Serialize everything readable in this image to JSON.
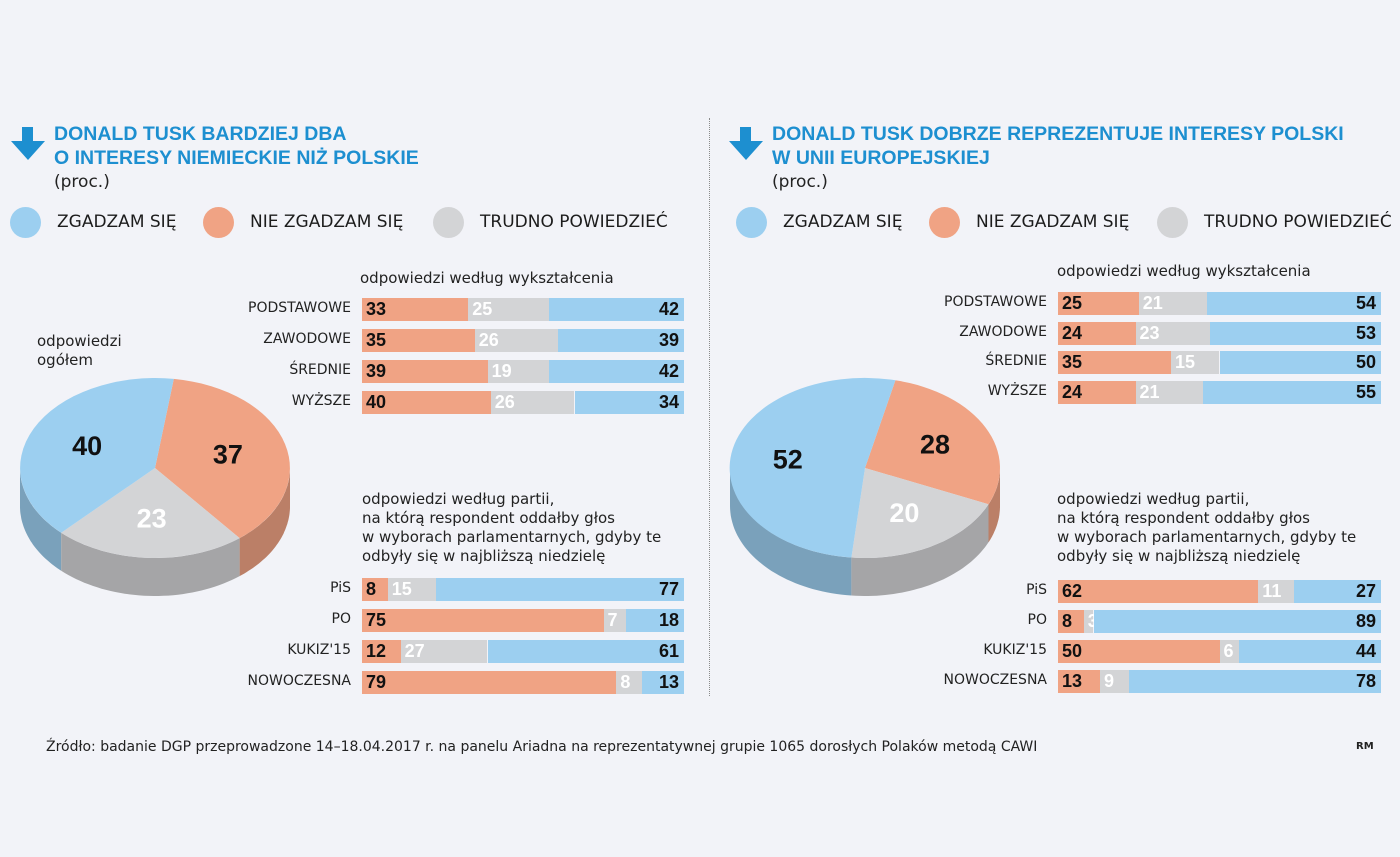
{
  "colors": {
    "agree": "#9ccff0",
    "disagree": "#f0a384",
    "hard": "#d3d4d6",
    "title": "#1d8fd0"
  },
  "legend": {
    "agree": "ZGADZAM SIĘ",
    "disagree": "NIE ZGADZAM SIĘ",
    "hard": "TRUDNO POWIEDZIEĆ"
  },
  "left": {
    "title_line1": "DONALD TUSK BARDZIEJ DBA",
    "title_line2": "O INTERESY NIEMIECKIE NIŻ POLSKIE",
    "unit": "(proc.)",
    "pie_label_line1": "odpowiedzi",
    "pie_label_line2": "ogółem",
    "education_label": "odpowiedzi według wykształcenia",
    "party_label": [
      "odpowiedzi według partii,",
      "na którą respondent oddałby głos",
      "w wyborach parlamentarnych, gdyby te",
      "odbyły się w najbliższą niedzielę"
    ]
  },
  "right": {
    "title_line1": "DONALD TUSK DOBRZE REPREZENTUJE INTERESY POLSKI",
    "title_line2": "W UNII EUROPEJSKIEJ",
    "unit": "(proc.)",
    "education_label": "odpowiedzi według wykształcenia",
    "party_label": [
      "odpowiedzi według partii,",
      "na którą respondent oddałby głos",
      "w wyborach parlamentarnych, gdyby te",
      "odbyły się w najbliższą niedzielę"
    ]
  },
  "footer": "Źródło: badanie DGP przeprowadzone 14–18.04.2017 r. na panelu Ariadna na reprezentatywnej grupie 1065 dorosłych Polaków metodą CAWI",
  "credit": "RM",
  "chart_data": [
    {
      "type": "pie",
      "title": "DONALD TUSK BARDZIEJ DBA O INTERESY NIEMIECKIE NIŻ POLSKIE",
      "subtitle": "odpowiedzi ogółem",
      "categories": [
        "ZGADZAM SIĘ",
        "NIE ZGADZAM SIĘ",
        "TRUDNO POWIEDZIEĆ"
      ],
      "values": [
        40,
        37,
        23
      ]
    },
    {
      "type": "bar",
      "orientation": "horizontal-stacked",
      "title": "odpowiedzi według wykształcenia",
      "categories": [
        "PODSTAWOWE",
        "ZAWODOWE",
        "ŚREDNIE",
        "WYŻSZE"
      ],
      "series": [
        {
          "name": "NIE ZGADZAM SIĘ",
          "values": [
            33,
            35,
            39,
            40
          ]
        },
        {
          "name": "TRUDNO POWIEDZIEĆ",
          "values": [
            25,
            26,
            19,
            26
          ]
        },
        {
          "name": "ZGADZAM SIĘ",
          "values": [
            42,
            39,
            42,
            34
          ]
        }
      ]
    },
    {
      "type": "bar",
      "orientation": "horizontal-stacked",
      "title": "odpowiedzi według partii",
      "categories": [
        "PiS",
        "PO",
        "KUKIZ'15",
        "NOWOCZESNA"
      ],
      "series": [
        {
          "name": "NIE ZGADZAM SIĘ",
          "values": [
            8,
            75,
            12,
            79
          ]
        },
        {
          "name": "TRUDNO POWIEDZIEĆ",
          "values": [
            15,
            7,
            27,
            8
          ]
        },
        {
          "name": "ZGADZAM SIĘ",
          "values": [
            77,
            18,
            61,
            13
          ]
        }
      ]
    },
    {
      "type": "pie",
      "title": "DONALD TUSK DOBRZE REPREZENTUJE INTERESY POLSKI W UNII EUROPEJSKIEJ",
      "categories": [
        "ZGADZAM SIĘ",
        "NIE ZGADZAM SIĘ",
        "TRUDNO POWIEDZIEĆ"
      ],
      "values": [
        52,
        28,
        20
      ]
    },
    {
      "type": "bar",
      "orientation": "horizontal-stacked",
      "title": "odpowiedzi według wykształcenia",
      "categories": [
        "PODSTAWOWE",
        "ZAWODOWE",
        "ŚREDNIE",
        "WYŻSZE"
      ],
      "series": [
        {
          "name": "NIE ZGADZAM SIĘ",
          "values": [
            25,
            24,
            35,
            24
          ]
        },
        {
          "name": "TRUDNO POWIEDZIEĆ",
          "values": [
            21,
            23,
            15,
            21
          ]
        },
        {
          "name": "ZGADZAM SIĘ",
          "values": [
            54,
            53,
            50,
            55
          ]
        }
      ]
    },
    {
      "type": "bar",
      "orientation": "horizontal-stacked",
      "title": "odpowiedzi według partii",
      "categories": [
        "PiS",
        "PO",
        "KUKIZ'15",
        "NOWOCZESNA"
      ],
      "series": [
        {
          "name": "NIE ZGADZAM SIĘ",
          "values": [
            62,
            8,
            50,
            13
          ]
        },
        {
          "name": "TRUDNO POWIEDZIEĆ",
          "values": [
            11,
            3,
            6,
            9
          ]
        },
        {
          "name": "ZGADZAM SIĘ",
          "values": [
            27,
            89,
            44,
            78
          ]
        }
      ]
    }
  ]
}
